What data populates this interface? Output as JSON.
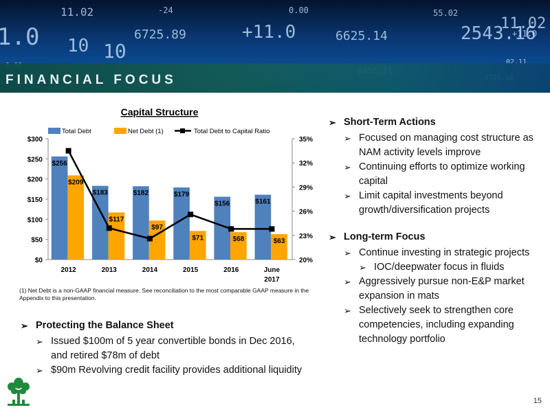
{
  "header": {
    "title": "FINANCIAL FOCUS"
  },
  "banner_numbers": [
    "1.0",
    "11.02",
    "10",
    "0.00",
    "6725.89",
    "+11.0",
    "6625.14",
    "0.00",
    "-24",
    "55.02",
    "11.02",
    "+11.0",
    "02.11",
    "6725.89",
    "8956.21",
    "2543.16",
    "10"
  ],
  "chart_data": {
    "type": "bar",
    "title": "Capital Structure",
    "categories": [
      "2012",
      "2013",
      "2014",
      "2015",
      "2016",
      "June 2017"
    ],
    "category_lines": [
      [
        "2012"
      ],
      [
        "2013"
      ],
      [
        "2014"
      ],
      [
        "2015"
      ],
      [
        "2016"
      ],
      [
        "June",
        "2017"
      ]
    ],
    "series": [
      {
        "name": "Total Debt",
        "values": [
          256,
          183,
          182,
          179,
          156,
          161
        ],
        "labels": [
          "$256",
          "$183",
          "$182",
          "$179",
          "$156",
          "$161"
        ],
        "color": "#4f81bd"
      },
      {
        "name": "Net Debt (1)",
        "values": [
          209,
          117,
          97,
          71,
          68,
          63
        ],
        "labels": [
          "$209",
          "$117",
          "$97",
          "$71",
          "$68",
          "$63"
        ],
        "color": "#ffa500"
      }
    ],
    "line_series": {
      "name": "Total Debt to Capital Ratio",
      "values": [
        33.5,
        23.9,
        22.6,
        25.6,
        23.8,
        23.8
      ],
      "color": "#000000"
    },
    "y_left": {
      "min": 0,
      "max": 300,
      "ticks": [
        "$0",
        "$50",
        "$100",
        "$150",
        "$200",
        "$250",
        "$300"
      ]
    },
    "y_right": {
      "min": 20,
      "max": 35,
      "ticks": [
        "20%",
        "23%",
        "26%",
        "29%",
        "32%",
        "35%"
      ]
    },
    "legend_position": "top",
    "grid": false
  },
  "footnote": "(1) Net Debt is a non-GAAP financial measure. See reconciliation to the most comparable GAAP measure in the Appendix to this presentation.",
  "right_column": {
    "short_term": {
      "heading": "Short-Term Actions",
      "items": [
        "Focused on managing cost structure as NAM activity levels improve",
        "Continuing efforts to optimize working capital",
        "Limit capital investments beyond growth/diversification projects"
      ]
    },
    "long_term": {
      "heading": "Long-term Focus",
      "item1": "Continue investing in strategic projects",
      "sub_item": "IOC/deepwater focus in fluids",
      "item2": "Aggressively pursue non-E&P market expansion in mats",
      "item3": "Selectively seek to strengthen core competencies, including expanding technology portfolio"
    }
  },
  "left_column": {
    "heading": "Protecting the Balance Sheet",
    "items": [
      "Issued $100m of 5 year convertible bonds in Dec 2016, and retired $78m of debt",
      "$90m Revolving credit facility provides additional liquidity"
    ]
  },
  "arrow_glyph": "➢",
  "page_number": "15"
}
